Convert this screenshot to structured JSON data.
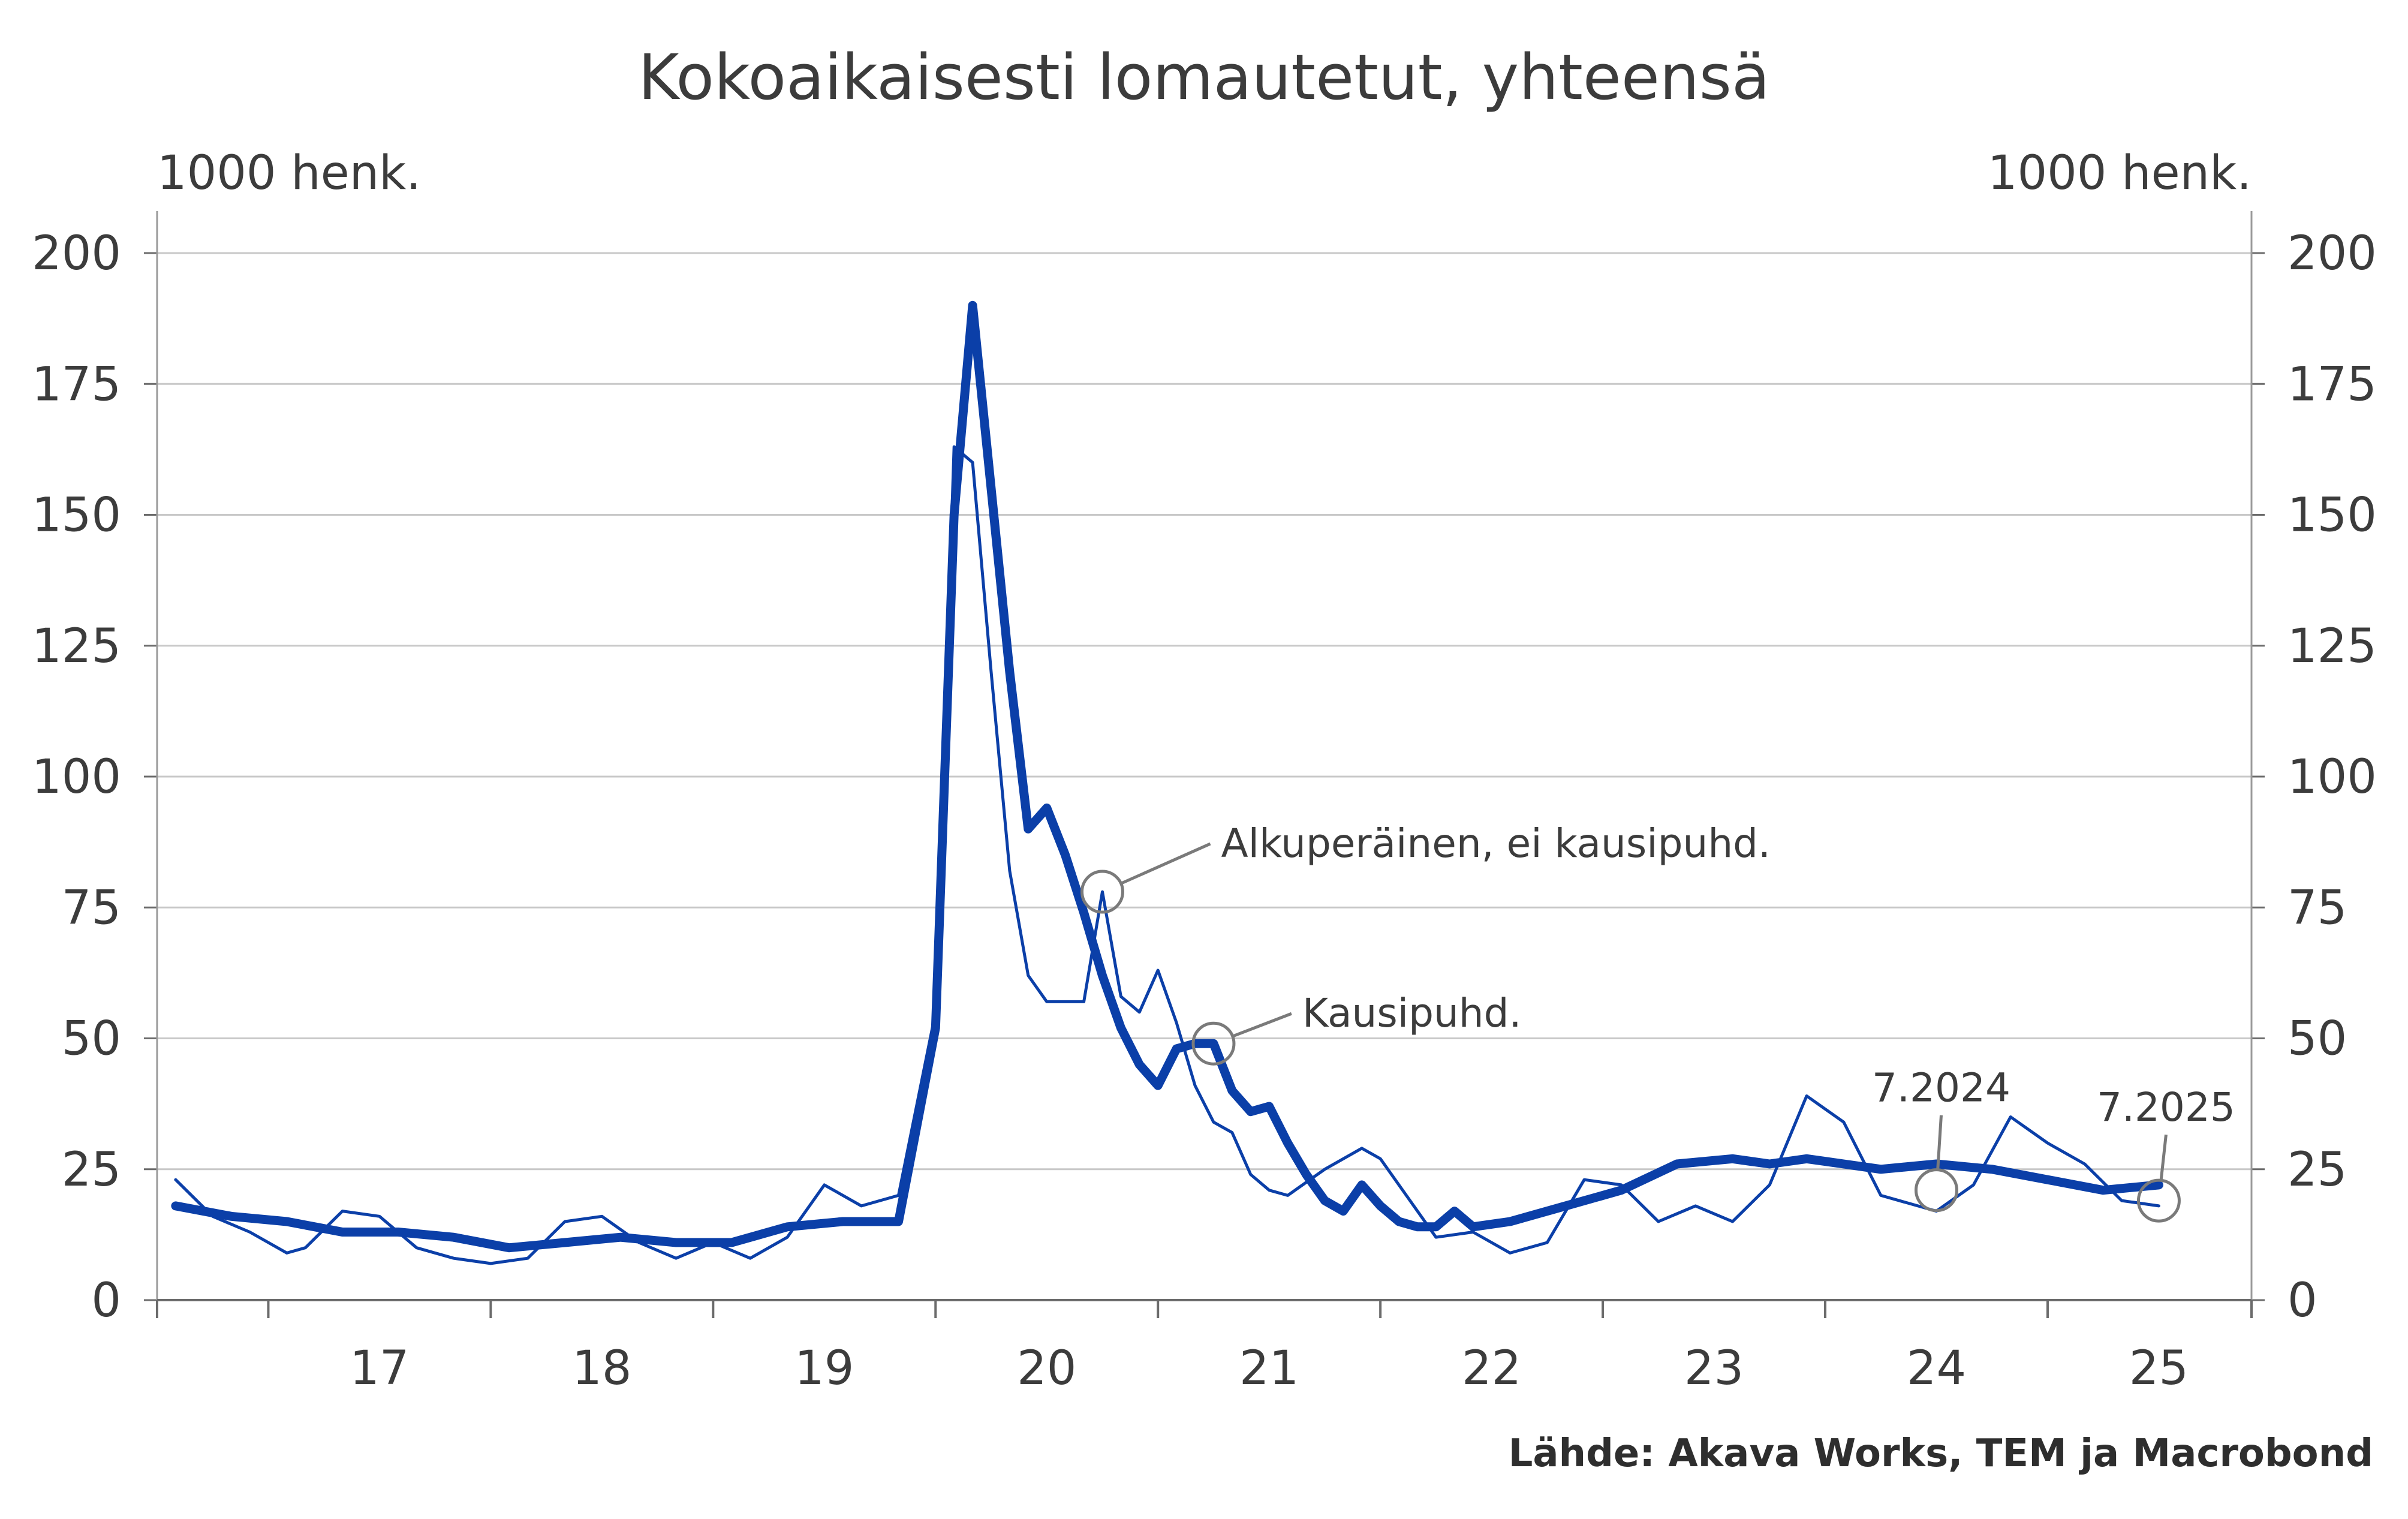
{
  "chart_data": {
    "type": "line",
    "title": "Kokoaikaisesti lomautetut, yhteensä",
    "unit_left": "1000 henk.",
    "unit_right": "1000 henk.",
    "source": "Lähde: Akava Works, TEM ja Macrobond",
    "ylim": [
      0,
      200
    ],
    "xlim": [
      "2016-07",
      "2025-12"
    ],
    "y_ticks": [
      0,
      25,
      50,
      75,
      100,
      125,
      150,
      175,
      200
    ],
    "y_tick_labels": [
      "0",
      "25",
      "50",
      "75",
      "100",
      "125",
      "150",
      "175",
      "200"
    ],
    "x_tick_labels": [
      "17",
      "18",
      "19",
      "20",
      "21",
      "22",
      "23",
      "24",
      "25"
    ],
    "grid": true,
    "series": [
      {
        "name": "Kausipuhd.",
        "color": "#0b3fa8",
        "x": [
          "2016-08",
          "2016-11",
          "2017-02",
          "2017-05",
          "2017-08",
          "2017-11",
          "2018-02",
          "2018-05",
          "2018-08",
          "2018-11",
          "2019-02",
          "2019-05",
          "2019-08",
          "2019-11",
          "2020-01",
          "2020-02",
          "2020-03",
          "2020-04",
          "2020-05",
          "2020-06",
          "2020-07",
          "2020-08",
          "2020-09",
          "2020-10",
          "2020-11",
          "2020-12",
          "2021-01",
          "2021-02",
          "2021-03",
          "2021-04",
          "2021-05",
          "2021-06",
          "2021-07",
          "2021-08",
          "2021-09",
          "2021-10",
          "2021-11",
          "2021-12",
          "2022-01",
          "2022-02",
          "2022-03",
          "2022-04",
          "2022-05",
          "2022-06",
          "2022-08",
          "2022-11",
          "2023-02",
          "2023-05",
          "2023-08",
          "2023-10",
          "2023-12",
          "2024-02",
          "2024-04",
          "2024-07",
          "2024-10",
          "2025-01",
          "2025-04",
          "2025-07"
        ],
        "y": [
          18,
          16,
          15,
          13,
          13,
          12,
          10,
          11,
          12,
          11,
          11,
          14,
          15,
          15,
          52,
          150,
          190,
          155,
          120,
          90,
          94,
          85,
          74,
          62,
          52,
          45,
          41,
          48,
          49,
          49,
          40,
          36,
          37,
          30,
          24,
          19,
          17,
          22,
          18,
          15,
          14,
          14,
          17,
          14,
          15,
          18,
          21,
          26,
          27,
          26,
          27,
          26,
          25,
          26,
          25,
          23,
          21,
          22
        ]
      },
      {
        "name": "Alkuperäinen, ei kausipuhd.",
        "color": "#0b3fa8",
        "x": [
          "2016-08",
          "2016-10",
          "2016-12",
          "2017-02",
          "2017-03",
          "2017-05",
          "2017-07",
          "2017-09",
          "2017-11",
          "2018-01",
          "2018-03",
          "2018-05",
          "2018-07",
          "2018-09",
          "2018-11",
          "2019-01",
          "2019-03",
          "2019-05",
          "2019-07",
          "2019-09",
          "2019-11",
          "2020-01",
          "2020-02",
          "2020-03",
          "2020-04",
          "2020-05",
          "2020-06",
          "2020-07",
          "2020-08",
          "2020-09",
          "2020-10",
          "2020-11",
          "2020-12",
          "2021-01",
          "2021-02",
          "2021-03",
          "2021-04",
          "2021-05",
          "2021-06",
          "2021-07",
          "2021-08",
          "2021-10",
          "2021-12",
          "2022-01",
          "2022-02",
          "2022-04",
          "2022-06",
          "2022-08",
          "2022-10",
          "2022-12",
          "2023-02",
          "2023-04",
          "2023-06",
          "2023-08",
          "2023-10",
          "2023-12",
          "2024-02",
          "2024-04",
          "2024-07",
          "2024-09",
          "2024-11",
          "2025-01",
          "2025-03",
          "2025-05",
          "2025-07"
        ],
        "y": [
          23,
          16,
          13,
          9,
          10,
          17,
          16,
          10,
          8,
          7,
          8,
          15,
          16,
          11,
          8,
          11,
          8,
          12,
          22,
          18,
          20,
          55,
          163,
          160,
          120,
          82,
          62,
          57,
          57,
          57,
          78,
          58,
          55,
          63,
          53,
          41,
          34,
          32,
          24,
          21,
          20,
          25,
          29,
          27,
          22,
          12,
          13,
          9,
          11,
          23,
          22,
          15,
          18,
          15,
          22,
          39,
          34,
          20,
          17,
          22,
          35,
          30,
          26,
          19,
          18
        ]
      }
    ],
    "annotations": [
      {
        "text": "Alkuperäinen, ei kausipuhd.",
        "x": "2020-10",
        "y": 78
      },
      {
        "text": "Kausipuhd.",
        "x": "2021-04",
        "y": 49
      },
      {
        "text": "7.2024",
        "x": "2024-07",
        "y": 21
      },
      {
        "text": "7.2025",
        "x": "2025-07",
        "y": 19
      }
    ]
  }
}
